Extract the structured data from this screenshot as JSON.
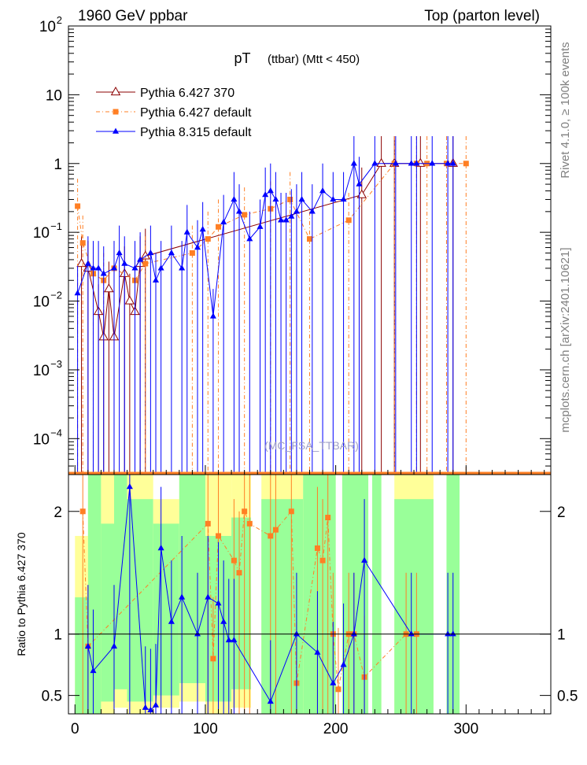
{
  "header": {
    "left": "1960 GeV ppbar",
    "right": "Top (parton level)"
  },
  "side_labels": {
    "rivet": "Rivet 4.1.0, ≥ 100k events",
    "source": "mcplots.cern.ch [arXiv:2401.10621]"
  },
  "watermark": "(MC_FSA_TTBAR)",
  "chart_data": {
    "type": "scatter",
    "title_main": "pT",
    "title_sub": "(ttbar) (Mtt < 450)",
    "xlim": [
      -5,
      365
    ],
    "xticks": [
      0,
      100,
      200,
      300
    ],
    "top_panel": {
      "yscale": "log",
      "ylim": [
        3e-05,
        100
      ],
      "ytick_labels": [
        {
          "value": 100,
          "base": "10",
          "exp": "2"
        },
        {
          "value": 10,
          "base": "10",
          "exp": ""
        },
        {
          "value": 1,
          "base": "1",
          "exp": ""
        },
        {
          "value": 0.1,
          "base": "10",
          "exp": "−1"
        },
        {
          "value": 0.01,
          "base": "10",
          "exp": "−2"
        },
        {
          "value": 0.001,
          "base": "10",
          "exp": "−3"
        },
        {
          "value": 0.0001,
          "base": "10",
          "exp": "−4"
        }
      ]
    },
    "ratio_panel": {
      "ylabel": "Ratio to Pythia 6.427 370",
      "ylim": [
        0.35,
        2.3
      ],
      "yticks": [
        0.5,
        1,
        2
      ],
      "ytick_labels": [
        "0.5",
        "1",
        "2"
      ]
    },
    "series": [
      {
        "name": "Pythia 6.427 370",
        "color": "#8b0000",
        "marker": "open-triangle",
        "x": [
          5,
          10,
          18,
          22,
          26,
          30,
          38,
          42,
          46,
          50,
          54,
          220,
          235,
          245,
          265,
          290
        ],
        "y": [
          0.035,
          0.03,
          0.007,
          0.003,
          0.015,
          0.003,
          0.025,
          0.01,
          0.007,
          0.035,
          0.045,
          0.35,
          1.0,
          1.0,
          1.0,
          1.0
        ]
      },
      {
        "name": "Pythia 6.427 default",
        "color": "#ff7f24",
        "marker": "square",
        "x": [
          2,
          6,
          14,
          22,
          30,
          46,
          54,
          90,
          102,
          110,
          130,
          150,
          165,
          180,
          210,
          245,
          262,
          270,
          285,
          300
        ],
        "y": [
          0.24,
          0.07,
          0.025,
          0.02,
          0.03,
          0.02,
          0.035,
          0.05,
          0.08,
          0.12,
          0.18,
          0.22,
          0.3,
          0.08,
          0.15,
          1.0,
          1.0,
          1.0,
          1.0,
          1.0
        ]
      },
      {
        "name": "Pythia 8.315 default",
        "color": "#0000ff",
        "marker": "filled-triangle",
        "x": [
          2,
          10,
          14,
          18,
          22,
          30,
          34,
          38,
          46,
          50,
          58,
          62,
          66,
          74,
          82,
          86,
          94,
          98,
          106,
          114,
          122,
          126,
          134,
          142,
          146,
          150,
          154,
          158,
          162,
          166,
          170,
          174,
          182,
          190,
          198,
          206,
          214,
          218,
          230,
          246,
          258,
          262,
          274,
          286,
          290
        ],
        "y": [
          0.013,
          0.035,
          0.03,
          0.03,
          0.025,
          0.03,
          0.05,
          0.035,
          0.03,
          0.04,
          0.05,
          0.02,
          0.03,
          0.05,
          0.03,
          0.1,
          0.06,
          0.11,
          0.006,
          0.14,
          0.3,
          0.2,
          0.08,
          0.12,
          0.35,
          0.4,
          0.3,
          0.15,
          0.15,
          0.17,
          0.2,
          0.3,
          0.2,
          0.4,
          0.3,
          0.3,
          1.0,
          0.5,
          1.0,
          1.0,
          1.0,
          1.0,
          1.0,
          1.0,
          1.0
        ]
      }
    ],
    "ratio_series": [
      {
        "name": "Pythia 6.427 default",
        "x": [
          6,
          10,
          102,
          106,
          110,
          122,
          126,
          130,
          134,
          150,
          154,
          166,
          170,
          186,
          190,
          194,
          198,
          202,
          210,
          214,
          222,
          254,
          262
        ],
        "y": [
          2.0,
          0.9,
          1.9,
          0.8,
          1.8,
          1.6,
          1.5,
          2.0,
          1.9,
          1.8,
          1.85,
          2.0,
          0.6,
          1.7,
          1.6,
          1.95,
          1.0,
          0.55,
          1.0,
          1.0,
          0.65,
          1.0,
          1.0
        ]
      },
      {
        "name": "Pythia 8.315 default",
        "x": [
          10,
          14,
          30,
          42,
          54,
          58,
          62,
          66,
          74,
          82,
          94,
          102,
          110,
          114,
          118,
          122,
          150,
          170,
          186,
          198,
          206,
          214,
          222,
          258,
          286,
          290
        ],
        "y": [
          0.9,
          0.7,
          0.9,
          2.2,
          0.4,
          0.38,
          0.42,
          1.7,
          1.1,
          1.3,
          1.0,
          1.3,
          1.25,
          1.1,
          0.95,
          0.95,
          0.45,
          1.0,
          0.85,
          0.6,
          0.75,
          1.0,
          1.6,
          1.0,
          1.0,
          1.0
        ]
      }
    ],
    "mc_band": [
      {
        "x0": 0,
        "x1": 10,
        "g0": 0.35,
        "g1": 1.3,
        "y0": 0.35,
        "y1": 1.8
      },
      {
        "x0": 10,
        "x1": 20,
        "g0": 0.35,
        "g1": 2.3,
        "y0": 0.35,
        "y1": 2.3
      },
      {
        "x0": 20,
        "x1": 30,
        "g0": 0.45,
        "g1": 1.9,
        "y0": 0.35,
        "y1": 2.3
      },
      {
        "x0": 30,
        "x1": 40,
        "g0": 0.55,
        "g1": 2.3,
        "y0": 0.4,
        "y1": 2.3
      },
      {
        "x0": 40,
        "x1": 60,
        "g0": 0.45,
        "g1": 2.1,
        "y0": 0.35,
        "y1": 2.3
      },
      {
        "x0": 60,
        "x1": 80,
        "g0": 0.5,
        "g1": 1.9,
        "y0": 0.4,
        "y1": 2.1
      },
      {
        "x0": 80,
        "x1": 100,
        "g0": 0.6,
        "g1": 2.3,
        "y0": 0.45,
        "y1": 2.3
      },
      {
        "x0": 100,
        "x1": 120,
        "g0": 0.45,
        "g1": 1.8,
        "y0": 0.35,
        "y1": 2.3
      },
      {
        "x0": 120,
        "x1": 135,
        "g0": 0.55,
        "g1": 1.95,
        "y0": 0.4,
        "y1": 2.3
      },
      {
        "x0": 143,
        "x1": 175,
        "g0": 0.35,
        "g1": 2.1,
        "y0": 0.35,
        "y1": 2.3
      },
      {
        "x0": 175,
        "x1": 200,
        "g0": 0.35,
        "g1": 2.3,
        "y0": 0.35,
        "y1": 2.3
      },
      {
        "x0": 205,
        "x1": 225,
        "g0": 0.35,
        "g1": 2.3,
        "y0": 0.35,
        "y1": 2.3
      },
      {
        "x0": 228,
        "x1": 235,
        "g0": 0.35,
        "g1": 2.3,
        "y0": 0.35,
        "y1": 2.3
      },
      {
        "x0": 245,
        "x1": 275,
        "g0": 0.35,
        "g1": 2.1,
        "y0": 0.35,
        "y1": 2.3
      },
      {
        "x0": 285,
        "x1": 295,
        "g0": 0.35,
        "g1": 2.3,
        "y0": 0.35,
        "y1": 2.3
      }
    ]
  }
}
